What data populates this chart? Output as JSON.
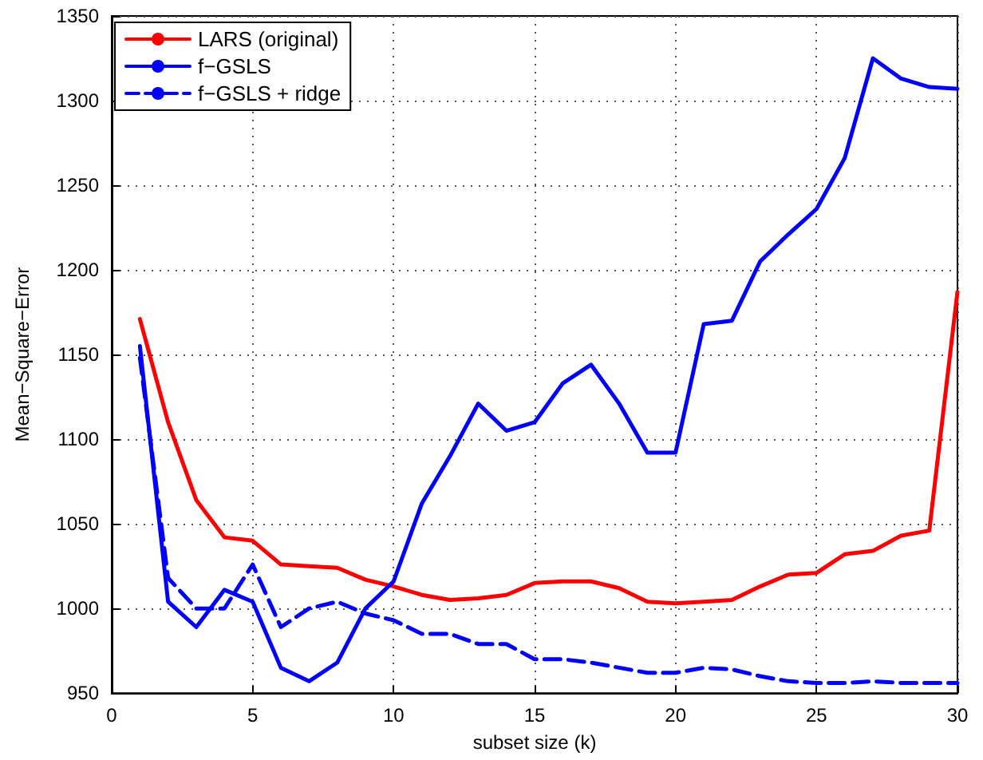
{
  "chart_data": {
    "type": "line",
    "xlabel": "subset size (k)",
    "ylabel": "Mean−Square−Error",
    "x": [
      1,
      2,
      3,
      4,
      5,
      6,
      7,
      8,
      9,
      10,
      11,
      12,
      13,
      14,
      15,
      16,
      17,
      18,
      19,
      20,
      21,
      22,
      23,
      24,
      25,
      26,
      27,
      28,
      29,
      30
    ],
    "series": [
      {
        "name": "LARS (original)",
        "color": "#ff0000",
        "line_style": "solid",
        "values": [
          1171,
          1110,
          1064,
          1042,
          1040,
          1026,
          1025,
          1024,
          1017,
          1013,
          1008,
          1005,
          1006,
          1008,
          1015,
          1016,
          1016,
          1012,
          1004,
          1003,
          1004,
          1005,
          1013,
          1020,
          1021,
          1032,
          1034,
          1043,
          1046,
          1187
        ]
      },
      {
        "name": "f−GSLS",
        "color": "#0000ff",
        "line_style": "solid",
        "values": [
          1155,
          1004,
          989,
          1011,
          1004,
          965,
          957,
          968,
          1000,
          1016,
          1062,
          1090,
          1121,
          1105,
          1110,
          1133,
          1144,
          1121,
          1092,
          1092,
          1168,
          1170,
          1205,
          1221,
          1236,
          1266,
          1325,
          1313,
          1308,
          1307
        ]
      },
      {
        "name": "f−GSLS + ridge",
        "color": "#0000ff",
        "line_style": "dashed",
        "values": [
          1148,
          1018,
          1000,
          1000,
          1026,
          989,
          1000,
          1004,
          997,
          993,
          985,
          985,
          979,
          979,
          970,
          970,
          968,
          965,
          962,
          962,
          965,
          964,
          960,
          957,
          956,
          956,
          957,
          956,
          956,
          956
        ]
      }
    ],
    "xlim": [
      0,
      30
    ],
    "xticks": [
      0,
      5,
      10,
      15,
      20,
      25,
      30
    ],
    "ylim": [
      950,
      1350
    ],
    "yticks": [
      950,
      1000,
      1050,
      1100,
      1150,
      1200,
      1250,
      1300,
      1350
    ],
    "grid": true,
    "legend": "top left",
    "marker": "none"
  }
}
